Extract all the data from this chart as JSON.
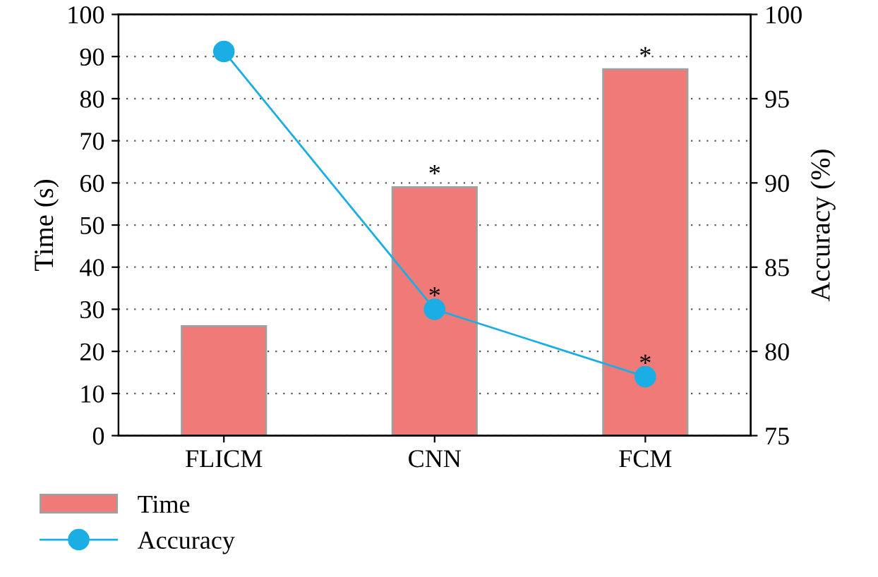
{
  "chart_data": {
    "type": "bar",
    "categories": [
      "FLICM",
      "CNN",
      "FCM"
    ],
    "ylabel": "Time (s)",
    "y2label": "Accuracy (%)",
    "series": [
      {
        "name": "Time",
        "color": "#f07a78",
        "values": [
          26,
          59,
          87
        ]
      },
      {
        "name": "Accuracy",
        "type": "line",
        "axis": "y2",
        "color": "#1aaee4",
        "values": [
          97.8,
          82.5,
          78.5
        ]
      }
    ],
    "ylim": [
      0,
      100
    ],
    "yticks": [
      0,
      10,
      20,
      30,
      40,
      50,
      60,
      70,
      80,
      90,
      100
    ],
    "y2lim": [
      75,
      100
    ],
    "y2ticks": [
      75,
      80,
      85,
      90,
      95,
      100
    ],
    "annotations": [
      {
        "text": "*",
        "x": "CNN",
        "y": 59
      },
      {
        "text": "*",
        "x": "FCM",
        "y": 87
      },
      {
        "text": "*",
        "x": "CNN",
        "y": 30
      },
      {
        "text": "*",
        "x": "FCM",
        "y": 14
      }
    ],
    "grid": "y",
    "legend": "bottom left",
    "marker": "circle",
    "line_style": "solid"
  }
}
